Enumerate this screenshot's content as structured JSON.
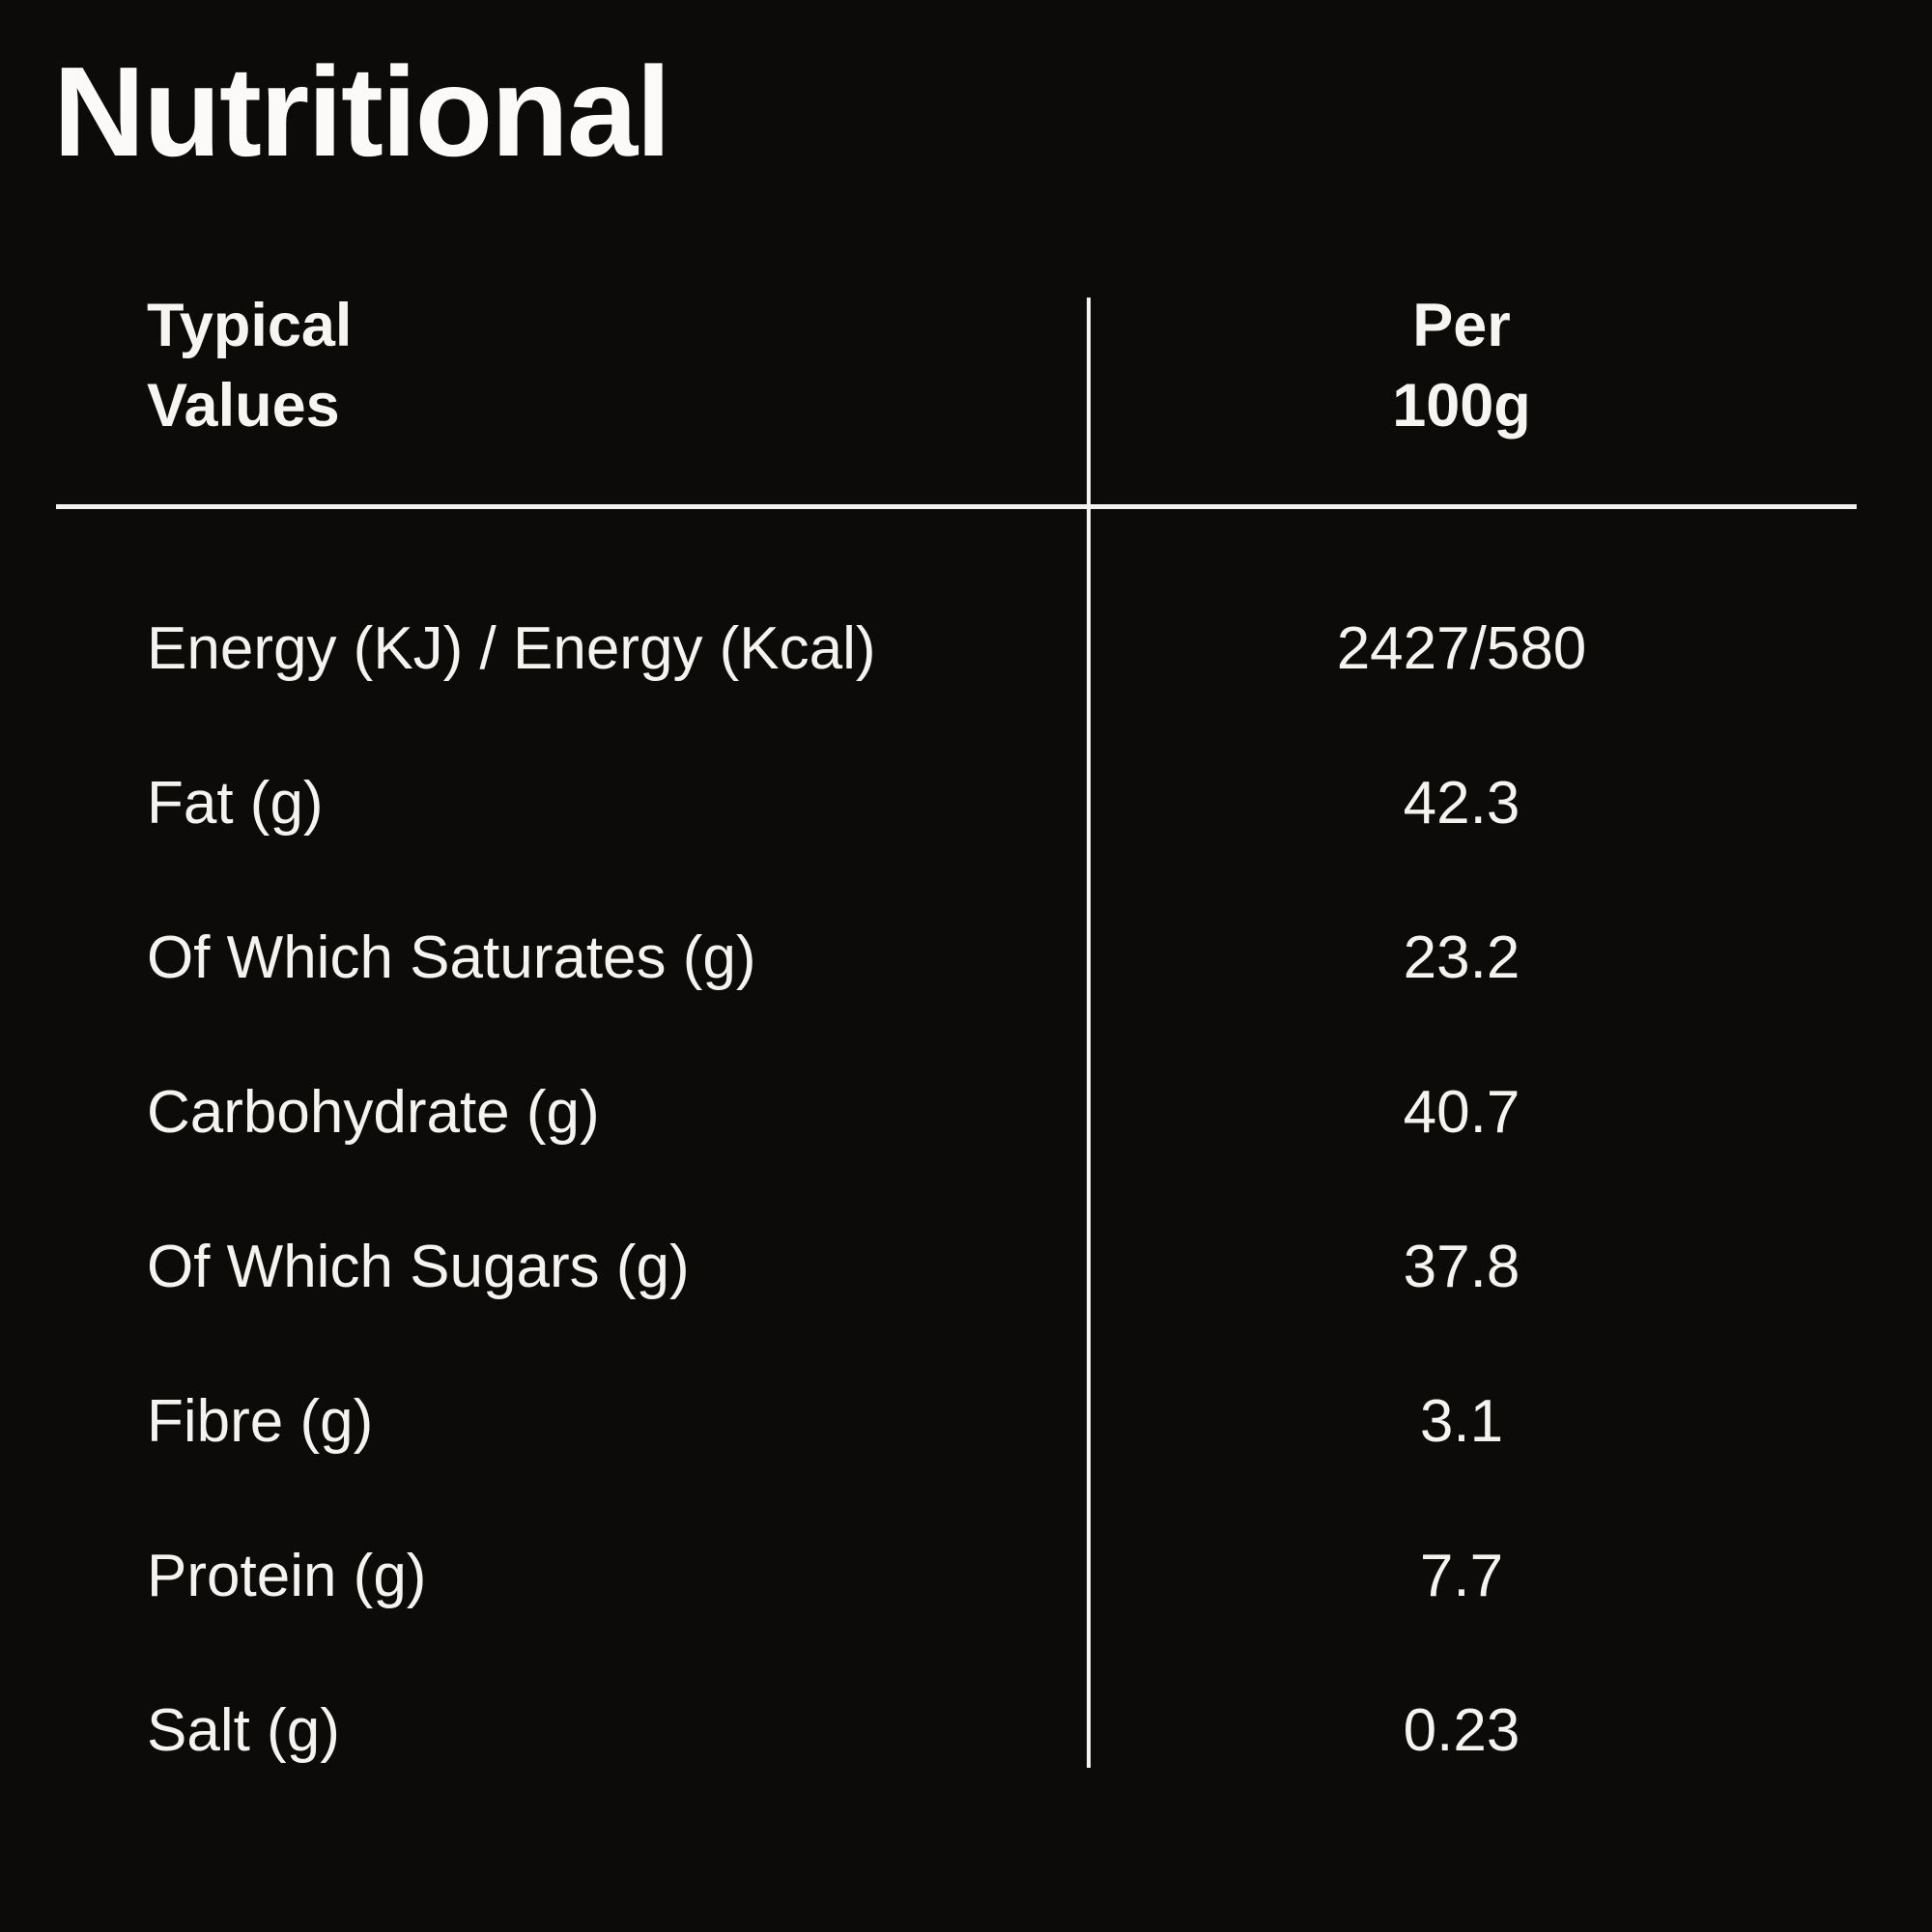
{
  "page": {
    "background_color": "#0D0B0A",
    "text_color": "#F5F3F0",
    "line_color": "#F3F2F0"
  },
  "title": "Nutritional",
  "table": {
    "header": {
      "col1_line1": "Typical",
      "col1_line2": "Values",
      "col2_line1": "Per",
      "col2_line2": "100g"
    },
    "rows": [
      {
        "label": "Energy (KJ) / Energy (Kcal)",
        "value": "2427/580"
      },
      {
        "label": "Fat (g)",
        "value": "42.3"
      },
      {
        "label": "Of Which Saturates (g)",
        "value": "23.2"
      },
      {
        "label": "Carbohydrate (g)",
        "value": "40.7"
      },
      {
        "label": "Of Which Sugars (g)",
        "value": "37.8"
      },
      {
        "label": "Fibre (g)",
        "value": "3.1"
      },
      {
        "label": "Protein (g)",
        "value": "7.7"
      },
      {
        "label": "Salt (g)",
        "value": "0.23"
      }
    ]
  }
}
